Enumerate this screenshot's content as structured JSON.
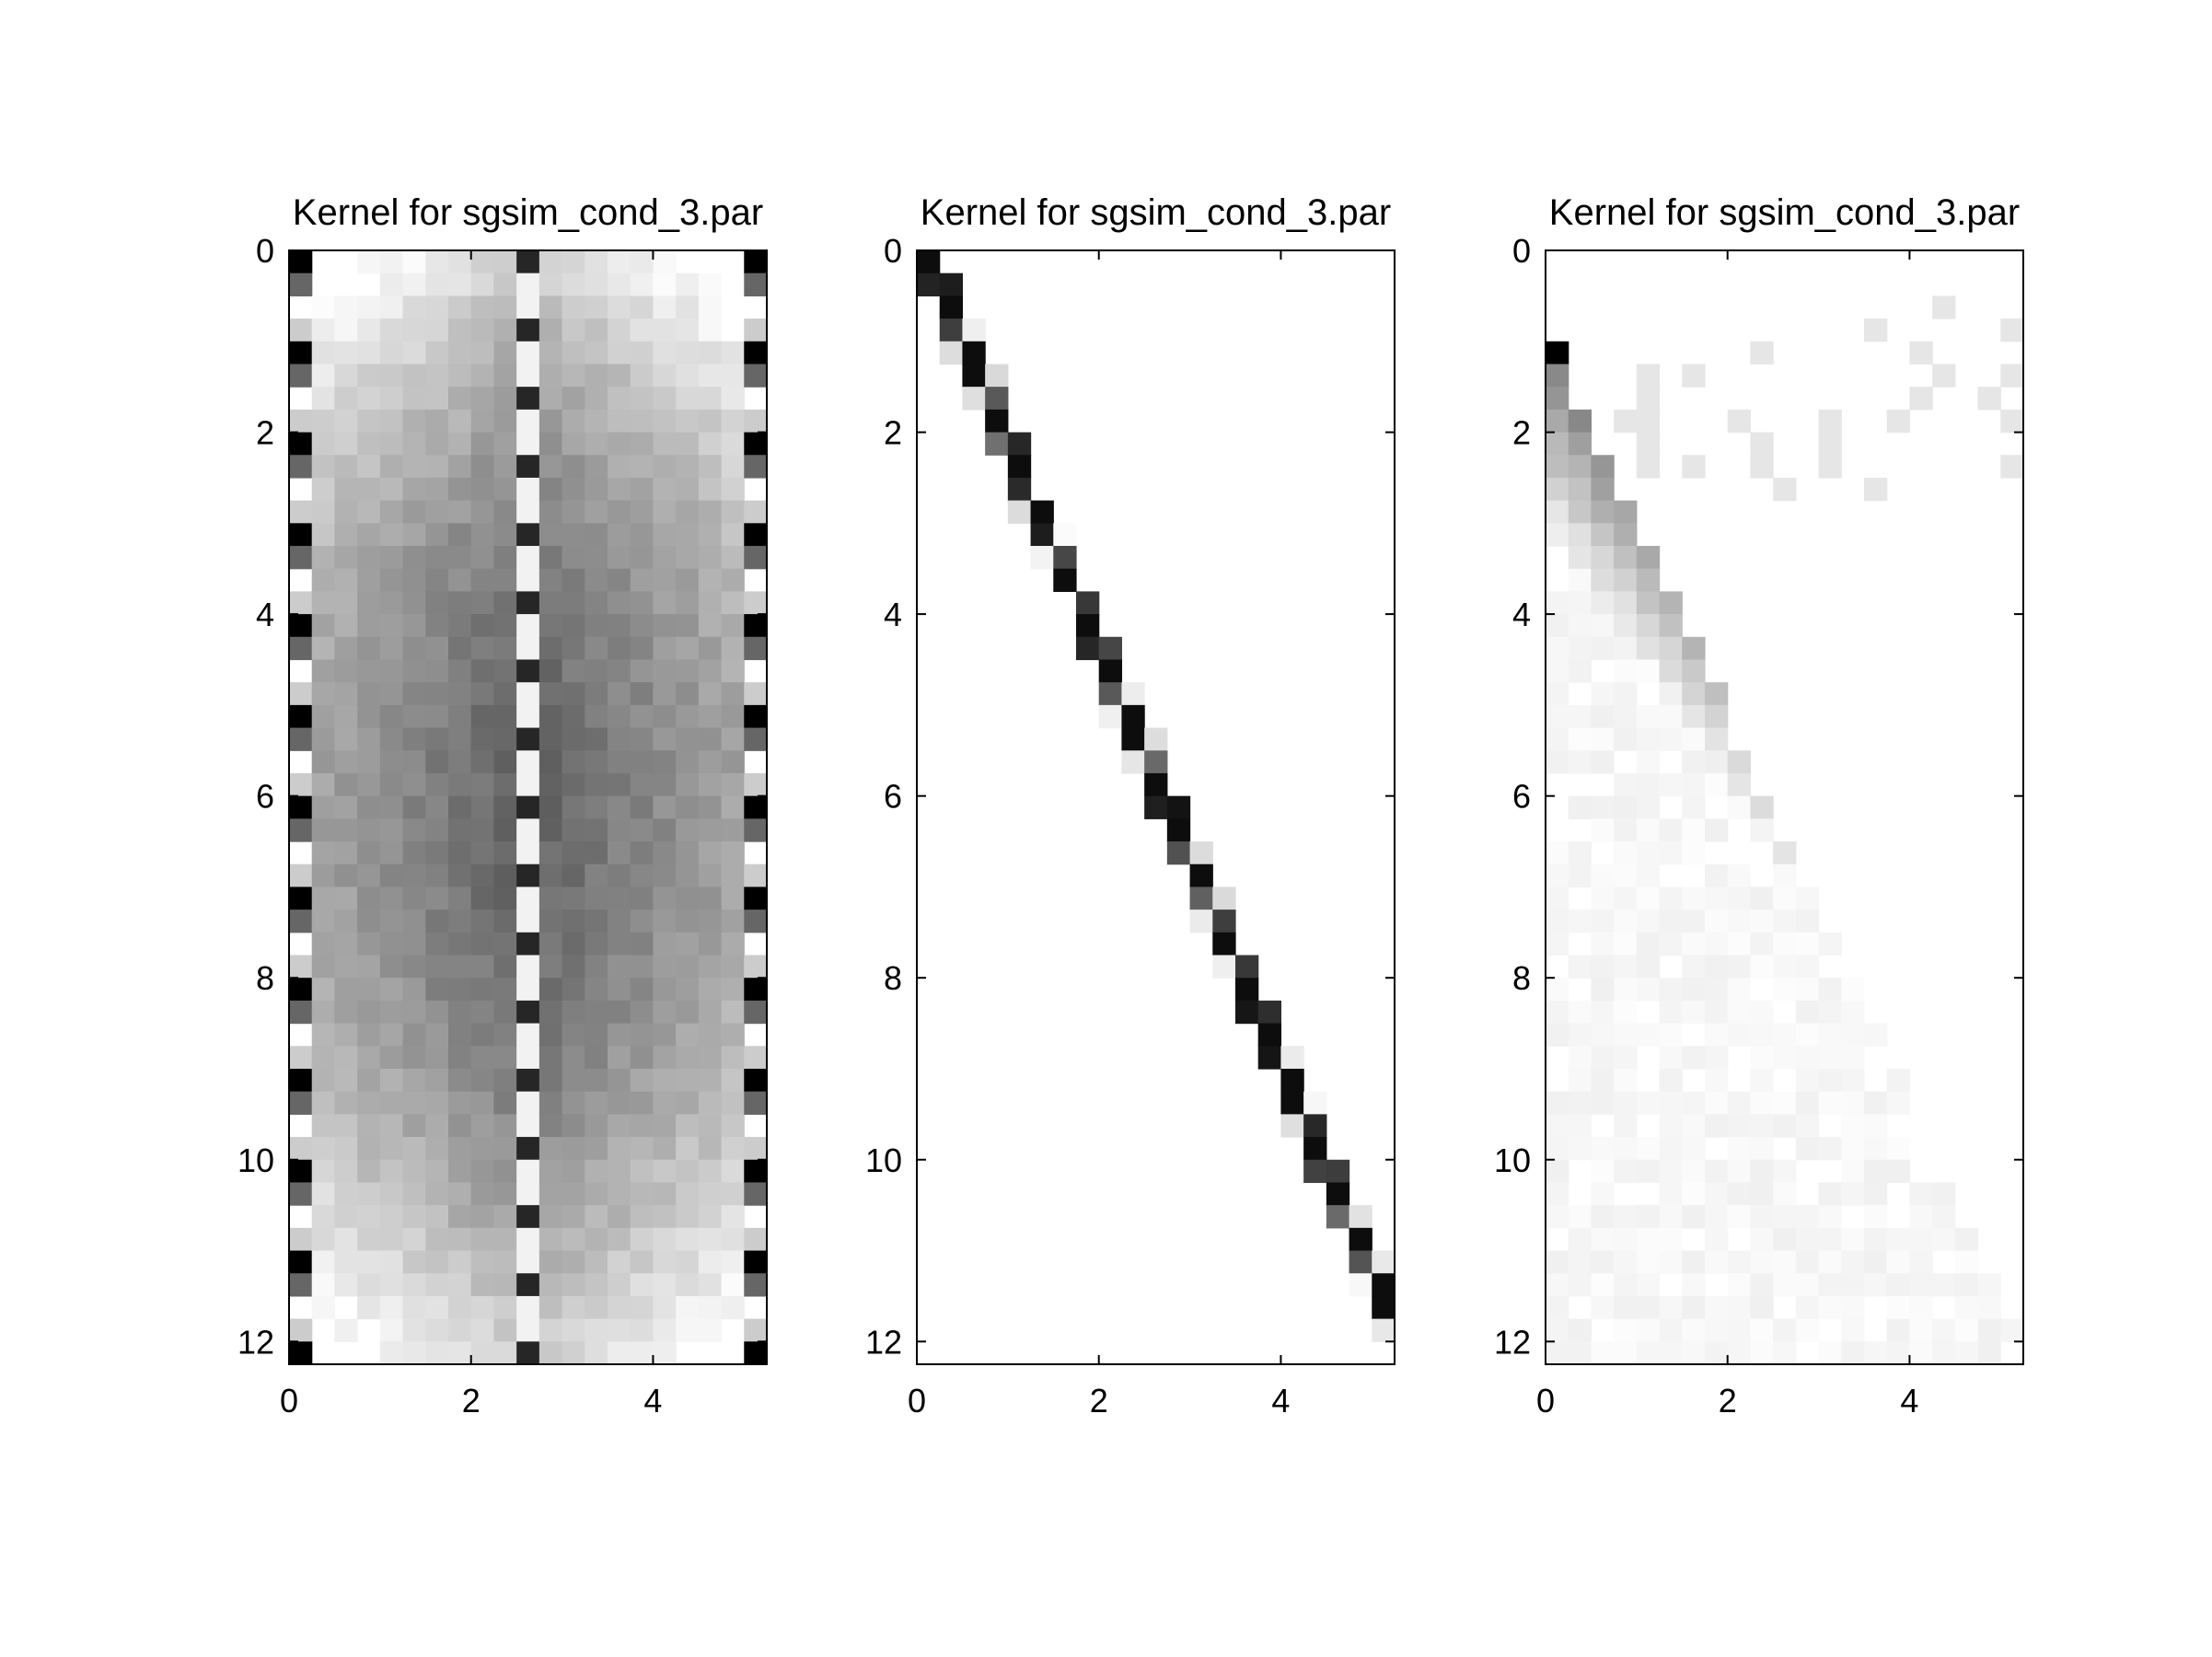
{
  "chart_data": [
    {
      "type": "heatmap",
      "title": "Kernel for  sgsim_cond_3.par",
      "xlim": [
        0,
        5.25
      ],
      "ylim": [
        12.25,
        0
      ],
      "x_ticks": [
        0,
        2,
        4
      ],
      "y_ticks": [
        0,
        2,
        4,
        6,
        8,
        10,
        12
      ],
      "grid": false,
      "colormap": "gray",
      "grid_size": {
        "cols": 21,
        "rows": 49,
        "cell": 0.25
      },
      "pattern": "dense symmetric kernel; light edges, darker centre, alternating black/white cells in the outer columns and a light/dark striped centre column"
    },
    {
      "type": "heatmap",
      "title": "Kernel for  sgsim_cond_3.par",
      "xlim": [
        0,
        5.25
      ],
      "ylim": [
        12.25,
        0
      ],
      "x_ticks": [
        0,
        2,
        4
      ],
      "y_ticks": [
        0,
        2,
        4,
        6,
        8,
        10,
        12
      ],
      "grid": false,
      "colormap": "gray",
      "grid_size": {
        "cols": 21,
        "rows": 49,
        "cell": 0.25
      },
      "pattern": "narrow dark diagonal band from (0, 0) to (5.25, 9.5); white elsewhere"
    },
    {
      "type": "heatmap",
      "title": "Kernel for  sgsim_cond_3.par",
      "xlim": [
        0,
        5.25
      ],
      "ylim": [
        12.25,
        0
      ],
      "x_ticks": [
        0,
        2,
        4
      ],
      "y_ticks": [
        0,
        2,
        4,
        6,
        8,
        10,
        12
      ],
      "grid": false,
      "colormap": "gray",
      "grid_size": {
        "cols": 21,
        "rows": 49,
        "cell": 0.25
      },
      "pattern": "faint upper-right triangle below the diagonal from (0, 1) to (5.25, 12.25); darkest cells near (0, 1.1)"
    }
  ]
}
